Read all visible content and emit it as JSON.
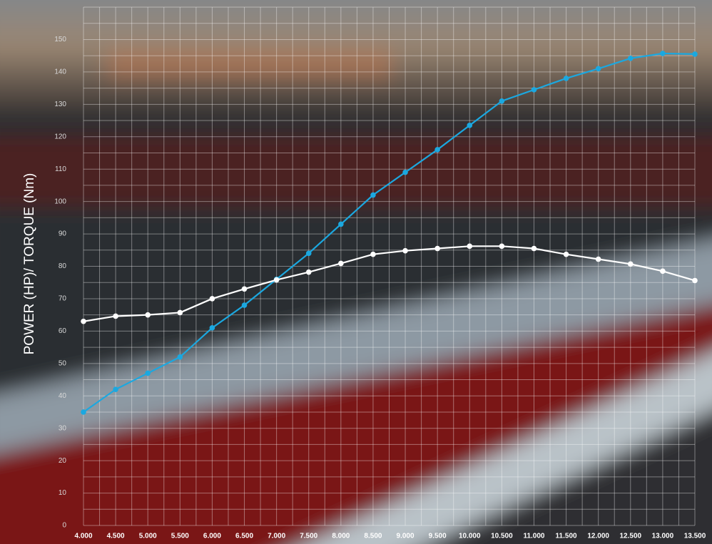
{
  "chart_data": {
    "type": "line",
    "y_axis_label": "POWER (HP)/ TORQUE (Nm)",
    "x": [
      4000,
      4500,
      5000,
      5500,
      6000,
      6500,
      7000,
      7500,
      8000,
      8500,
      9000,
      9500,
      10000,
      10500,
      11000,
      11500,
      12000,
      12500,
      13000,
      13500
    ],
    "series": [
      {
        "color": "#1ba8e0",
        "values": [
          35,
          42,
          47,
          52,
          61,
          68,
          76,
          84,
          93,
          102,
          109,
          116,
          123.5,
          131,
          134.5,
          138,
          141,
          144.2,
          145.7,
          145.5
        ]
      },
      {
        "color": "#ffffff",
        "values": [
          63,
          64.6,
          65,
          65.7,
          70,
          73,
          75.8,
          78.2,
          80.9,
          83.7,
          84.8,
          85.5,
          86.2,
          86.2,
          85.5,
          83.7,
          82.2,
          80.7,
          78.5,
          75.6
        ]
      }
    ],
    "xlim": [
      4000,
      13500
    ],
    "ylim": [
      0,
      160
    ],
    "xticks": [
      {
        "value": 4000,
        "label": "4.000"
      },
      {
        "value": 4500,
        "label": "4.500"
      },
      {
        "value": 5000,
        "label": "5.000"
      },
      {
        "value": 5500,
        "label": "5.500"
      },
      {
        "value": 6000,
        "label": "6.000"
      },
      {
        "value": 6500,
        "label": "6.500"
      },
      {
        "value": 7000,
        "label": "7.000"
      },
      {
        "value": 7500,
        "label": "7.500"
      },
      {
        "value": 8000,
        "label": "8.000"
      },
      {
        "value": 8500,
        "label": "8.500"
      },
      {
        "value": 9000,
        "label": "9.000"
      },
      {
        "value": 9500,
        "label": "9.500"
      },
      {
        "value": 10000,
        "label": "10.000"
      },
      {
        "value": 10500,
        "label": "10.500"
      },
      {
        "value": 11000,
        "label": "11.000"
      },
      {
        "value": 11500,
        "label": "11.500"
      },
      {
        "value": 12000,
        "label": "12.000"
      },
      {
        "value": 12500,
        "label": "12.500"
      },
      {
        "value": 13000,
        "label": "13.000"
      },
      {
        "value": 13500,
        "label": "13.500"
      }
    ],
    "yticks": [
      0,
      10,
      20,
      30,
      40,
      50,
      60,
      70,
      80,
      90,
      100,
      110,
      120,
      130,
      140,
      150
    ],
    "minor_xticks": [
      4250,
      4750,
      5250,
      5750,
      6250,
      6750,
      7250,
      7750,
      8250,
      8750,
      9250,
      9750,
      10250,
      10750,
      11250,
      11750,
      12250,
      12750,
      13250
    ],
    "minor_yticks": [
      5,
      15,
      25,
      35,
      45,
      55,
      65,
      75,
      85,
      95,
      105,
      115,
      125,
      135,
      145,
      155,
      160
    ],
    "grid": true
  }
}
